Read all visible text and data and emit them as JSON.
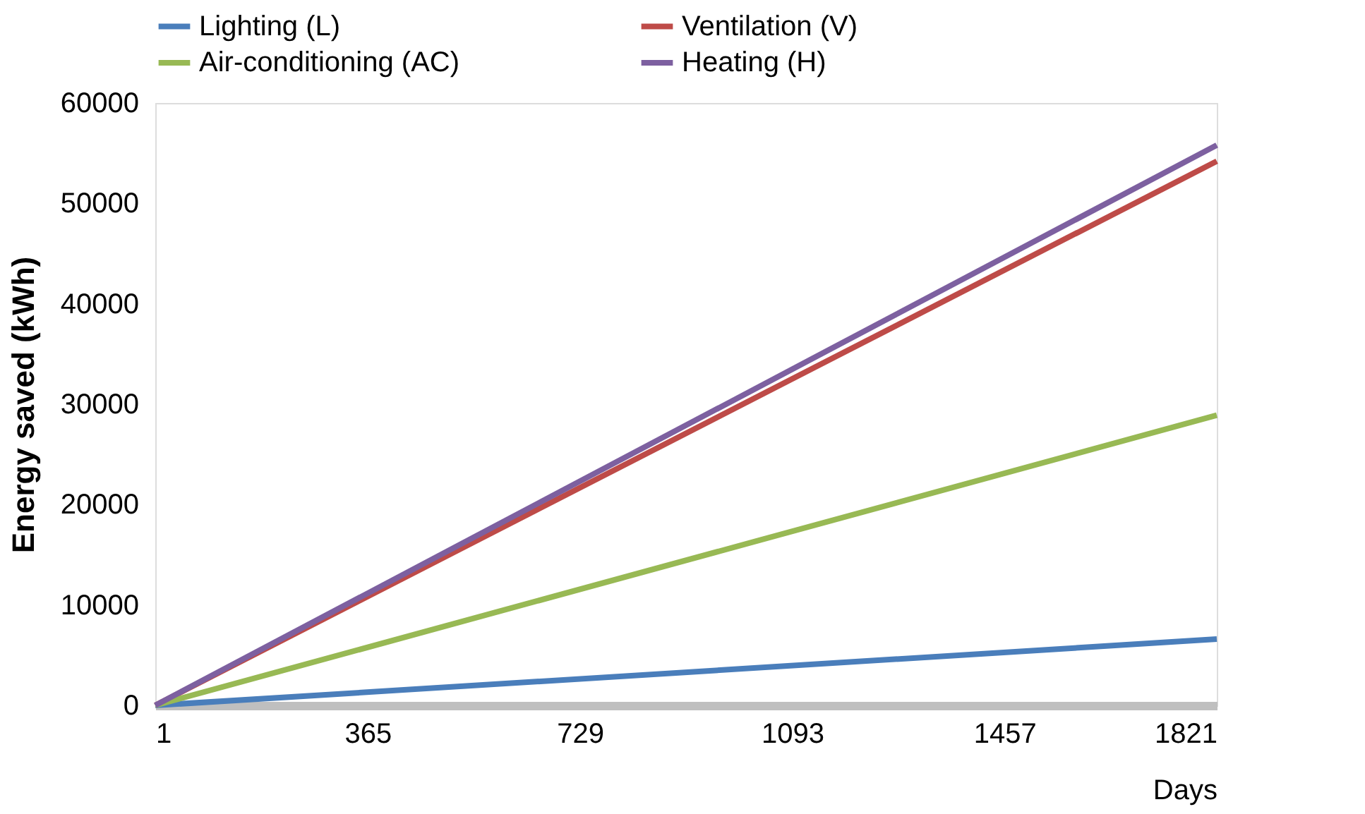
{
  "chart_data": {
    "type": "line",
    "xlabel": "Days",
    "ylabel": "Energy saved  (kWh)",
    "x": [
      1,
      1821
    ],
    "series": [
      {
        "name": "Lighting (L)",
        "color": "#4a7ebb",
        "values": [
          0,
          6600
        ]
      },
      {
        "name": "Ventilation (V)",
        "color": "#be4b48",
        "values": [
          0,
          54200
        ]
      },
      {
        "name": "Air-conditioning (AC)",
        "color": "#98b954",
        "values": [
          0,
          28900
        ]
      },
      {
        "name": "Heating (H)",
        "color": "#7d60a0",
        "values": [
          0,
          55800
        ]
      }
    ],
    "xlim": [
      1,
      1821
    ],
    "xticks": [
      1,
      365,
      729,
      1093,
      1457,
      1821
    ],
    "ylim": [
      0,
      60000
    ],
    "yticks": [
      0,
      10000,
      20000,
      30000,
      40000,
      50000,
      60000
    ],
    "grid": false,
    "legend": "top",
    "marker": "none",
    "line_style": "solid"
  }
}
